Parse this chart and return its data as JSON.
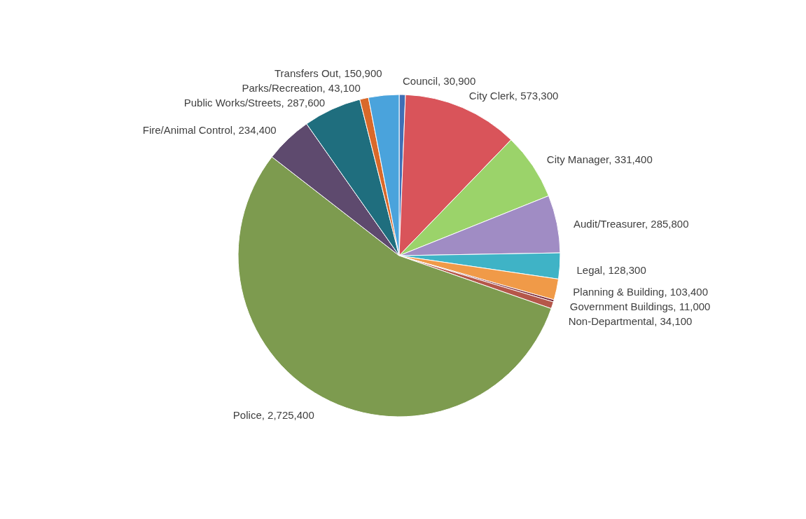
{
  "chart_data": {
    "type": "pie",
    "categories": [
      "Council",
      "City Clerk",
      "City Manager",
      "Audit/Treasurer",
      "Legal",
      "Planning & Building",
      "Government Buildings",
      "Non-Departmental",
      "Police",
      "Fire/Animal Control",
      "Public Works/Streets",
      "Parks/Recreation",
      "Transfers Out"
    ],
    "values": [
      30900,
      573300,
      331400,
      285800,
      128300,
      103400,
      11000,
      34100,
      2725400,
      234400,
      287600,
      43100,
      150900
    ],
    "value_labels": [
      "30,900",
      "573,300",
      "331,400",
      "285,800",
      "128,300",
      "103,400",
      "11,000",
      "34,100",
      "2,725,400",
      "234,400",
      "287,600",
      "43,100",
      "150,900"
    ],
    "colors": [
      "#3f6fb5",
      "#d9545a",
      "#9bd36a",
      "#a08cc4",
      "#3fb3c6",
      "#f09a48",
      "#7a2a3a",
      "#b5574a",
      "#7d9b4f",
      "#5e4a6e",
      "#1f6e7e",
      "#d9692a",
      "#4aa3dc"
    ]
  }
}
